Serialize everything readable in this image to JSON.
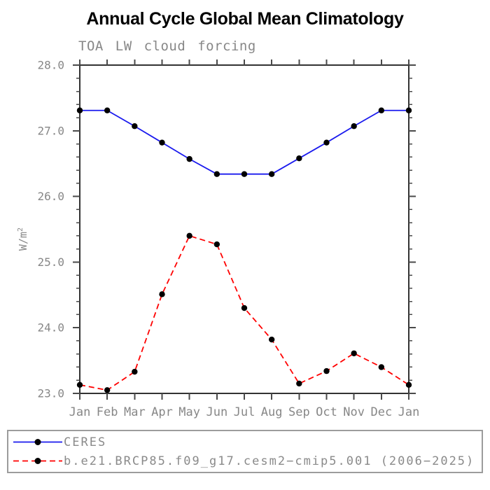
{
  "chart_data": {
    "type": "line",
    "title": "Annual Cycle Global Mean Climatology",
    "subtitle": "TOA LW cloud forcing",
    "ylabel": "W/m²",
    "xlabel": "",
    "categories": [
      "Jan",
      "Feb",
      "Mar",
      "Apr",
      "May",
      "Jun",
      "Jul",
      "Aug",
      "Sep",
      "Oct",
      "Nov",
      "Dec",
      "Jan"
    ],
    "ylim": [
      23.0,
      28.0
    ],
    "yticks_major": [
      23.0,
      24.0,
      25.0,
      26.0,
      27.0,
      28.0
    ],
    "ytick_minor_step": 0.2,
    "grid": false,
    "legend_position": "bottom",
    "axis_color": "#333333",
    "tick_color": "#4a4a4a",
    "label_color": "#878787",
    "series": [
      {
        "name": "CERES",
        "color": "#1a1aee",
        "line_style": "solid",
        "marker": "circle",
        "marker_color": "#000000",
        "values": [
          27.31,
          27.31,
          27.07,
          26.82,
          26.57,
          26.34,
          26.34,
          26.34,
          26.58,
          26.82,
          27.07,
          27.31,
          27.31
        ]
      },
      {
        "name": "b.e21.BRCP85.f09_g17.cesm2−cmip5.001 (2006−2025)",
        "color": "#ff0000",
        "line_style": "dashed",
        "marker": "circle",
        "marker_color": "#000000",
        "values": [
          23.13,
          23.05,
          23.33,
          24.51,
          25.4,
          25.27,
          24.3,
          23.82,
          23.15,
          23.34,
          23.61,
          23.4,
          23.13
        ]
      }
    ]
  }
}
